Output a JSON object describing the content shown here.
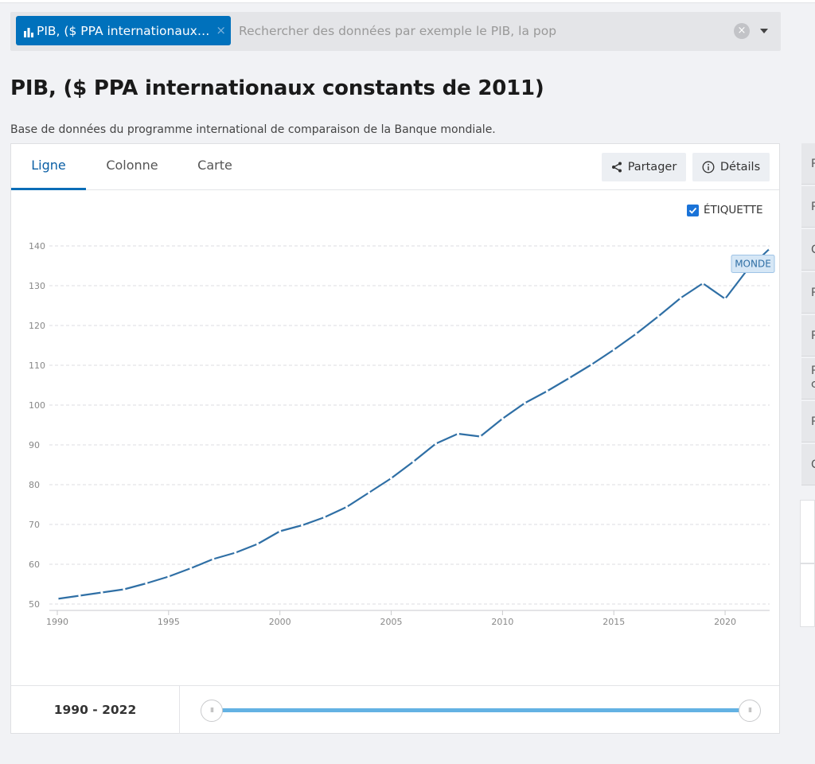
{
  "search": {
    "chip_label": "PIB, ($ PPA internationaux…",
    "chip_close": "×",
    "placeholder": "Rechercher des données par exemple le PIB, la pop",
    "clear": "×"
  },
  "page": {
    "title": "PIB, ($ PPA internationaux constants de 2011)",
    "subtitle": "Base de données du programme international de comparaison de la Banque mondiale."
  },
  "tabs": [
    {
      "label": "Ligne",
      "active": true
    },
    {
      "label": "Colonne",
      "active": false
    },
    {
      "label": "Carte",
      "active": false
    }
  ],
  "actions": {
    "share": "Partager",
    "details": "Détails"
  },
  "label_toggle": {
    "text": "ÉTIQUETTE",
    "checked": true
  },
  "range": {
    "label": "1990 - 2022",
    "start": 1990,
    "end": 2022
  },
  "colors": {
    "accent": "#0071bc",
    "line": "#2f6fa5",
    "slider": "#63b2e3"
  },
  "right_panel": {
    "items": [
      "P",
      "P",
      "C",
      "P",
      "P",
      "P\nc",
      "P",
      "C"
    ]
  },
  "chart_data": {
    "type": "line",
    "title": "",
    "xlabel": "",
    "ylabel": "",
    "xlim": [
      1990,
      2022
    ],
    "ylim": [
      50,
      140
    ],
    "x_ticks": [
      1990,
      1995,
      2000,
      2005,
      2010,
      2015,
      2020
    ],
    "y_ticks": [
      50,
      60,
      70,
      80,
      90,
      100,
      110,
      120,
      130,
      140
    ],
    "grid": true,
    "series": [
      {
        "name": "MONDE",
        "x": [
          1990,
          1991,
          1992,
          1993,
          1994,
          1995,
          1996,
          1997,
          1998,
          1999,
          2000,
          2001,
          2002,
          2003,
          2004,
          2005,
          2006,
          2007,
          2008,
          2009,
          2010,
          2011,
          2012,
          2013,
          2014,
          2015,
          2016,
          2017,
          2018,
          2019,
          2020,
          2021,
          2022
        ],
        "values": [
          51.3,
          52.1,
          52.9,
          53.7,
          55.2,
          56.9,
          59.0,
          61.3,
          62.9,
          65.1,
          68.3,
          69.8,
          71.8,
          74.4,
          78.0,
          81.6,
          85.8,
          90.3,
          92.8,
          92.1,
          96.6,
          100.5,
          103.5,
          106.8,
          110.2,
          113.9,
          117.9,
          122.3,
          126.9,
          130.6,
          126.7,
          134.0,
          139.3
        ]
      }
    ]
  }
}
